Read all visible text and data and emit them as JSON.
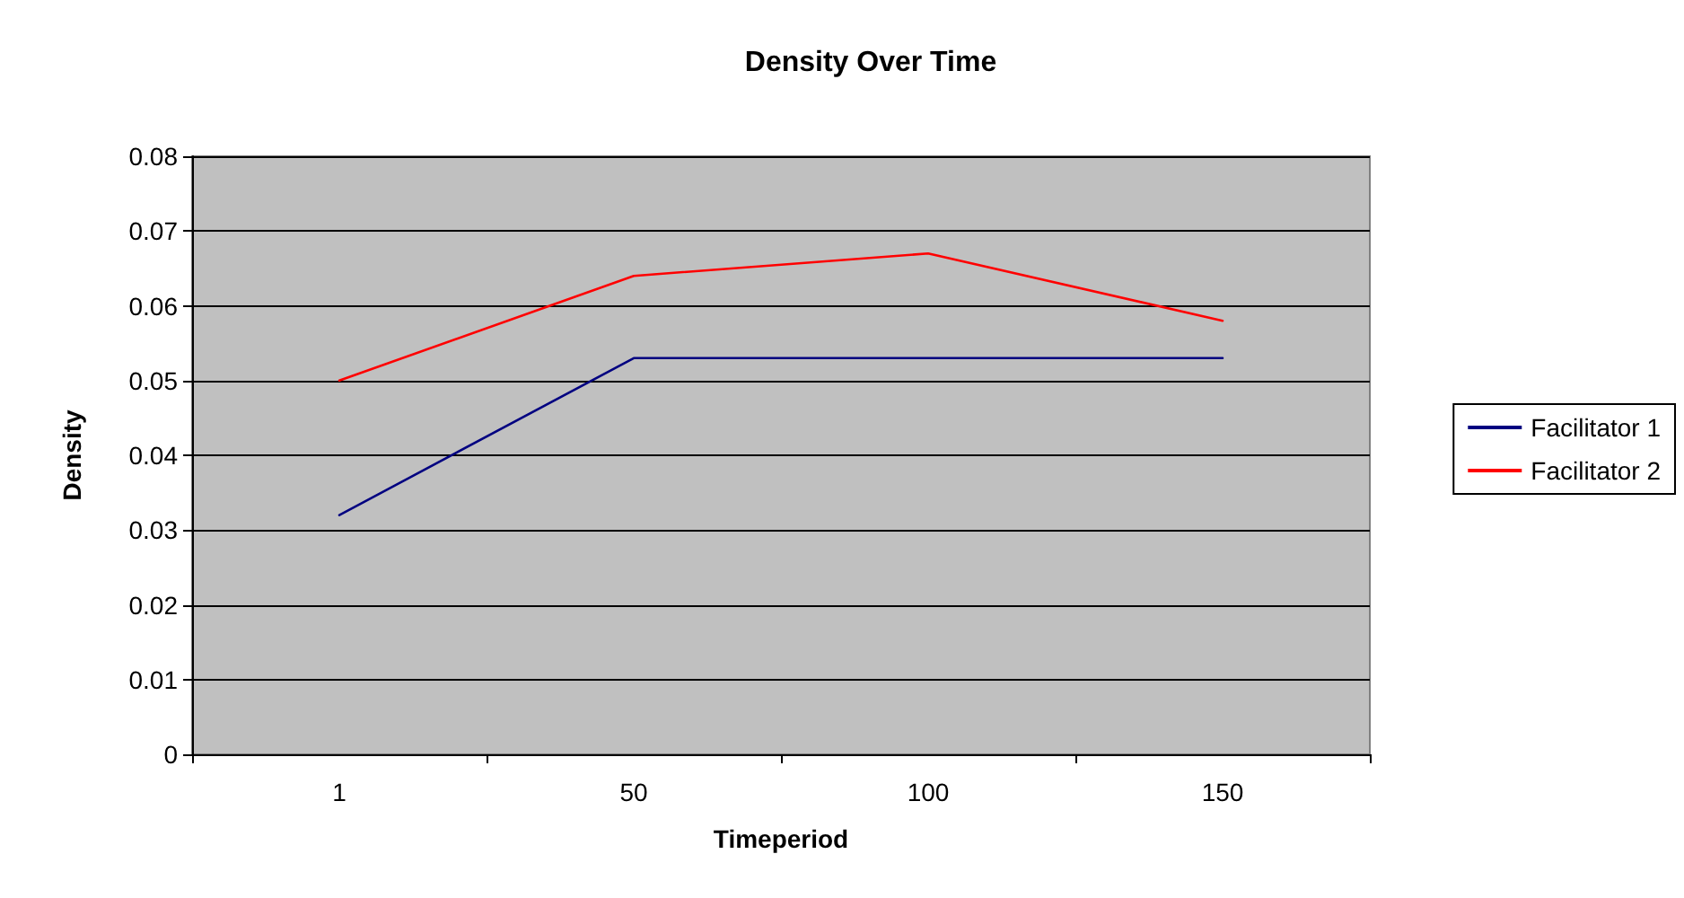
{
  "chart_data": {
    "type": "line",
    "title": "Density Over Time",
    "xlabel": "Timeperiod",
    "ylabel": "Density",
    "categories": [
      "1",
      "50",
      "100",
      "150"
    ],
    "series": [
      {
        "name": "Facilitator 1",
        "color": "#000080",
        "values": [
          0.032,
          0.053,
          0.053,
          0.053
        ]
      },
      {
        "name": "Facilitator 2",
        "color": "#ff0000",
        "values": [
          0.05,
          0.064,
          0.067,
          0.058
        ]
      }
    ],
    "ylim": [
      0,
      0.08
    ],
    "yticks": [
      0,
      0.01,
      0.02,
      0.03,
      0.04,
      0.05,
      0.06,
      0.07,
      0.08
    ],
    "grid": "y",
    "legend": "right",
    "marker": "none",
    "line_style": "solid"
  }
}
